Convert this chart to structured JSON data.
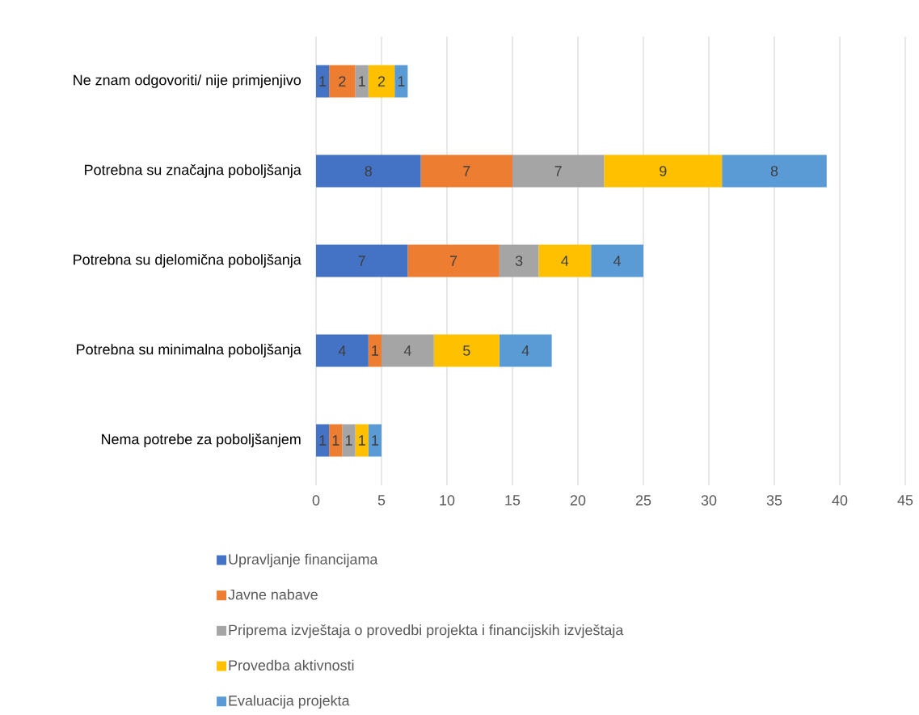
{
  "chart_data": {
    "type": "bar",
    "orientation": "horizontal",
    "stacked": true,
    "data_labels": true,
    "grid": "x",
    "legend": "bottom",
    "categories": [
      "Ne znam odgovoriti/ nije primjenjivo",
      "Potrebna su značajna poboljšanja",
      "Potrebna su djelomična poboljšanja",
      "Potrebna su minimalna poboljšanja",
      "Nema potrebe za poboljšanjem"
    ],
    "series": [
      {
        "name": "Upravljanje financijama",
        "color": "#4472c4",
        "values": [
          1,
          8,
          7,
          4,
          1
        ]
      },
      {
        "name": "Javne nabave",
        "color": "#ed7d31",
        "values": [
          2,
          7,
          7,
          1,
          1
        ]
      },
      {
        "name": "Priprema izvještaja o provedbi projekta i financijskih izvještaja",
        "color": "#a5a5a5",
        "values": [
          1,
          7,
          3,
          4,
          1
        ]
      },
      {
        "name": "Provedba aktivnosti",
        "color": "#ffc000",
        "values": [
          2,
          9,
          4,
          5,
          1
        ]
      },
      {
        "name": "Evaluacija projekta",
        "color": "#5b9bd5",
        "values": [
          1,
          8,
          4,
          4,
          1
        ]
      }
    ],
    "xlim": [
      0,
      45
    ],
    "xticks": [
      0,
      5,
      10,
      15,
      20,
      25,
      30,
      35,
      40,
      45
    ]
  }
}
